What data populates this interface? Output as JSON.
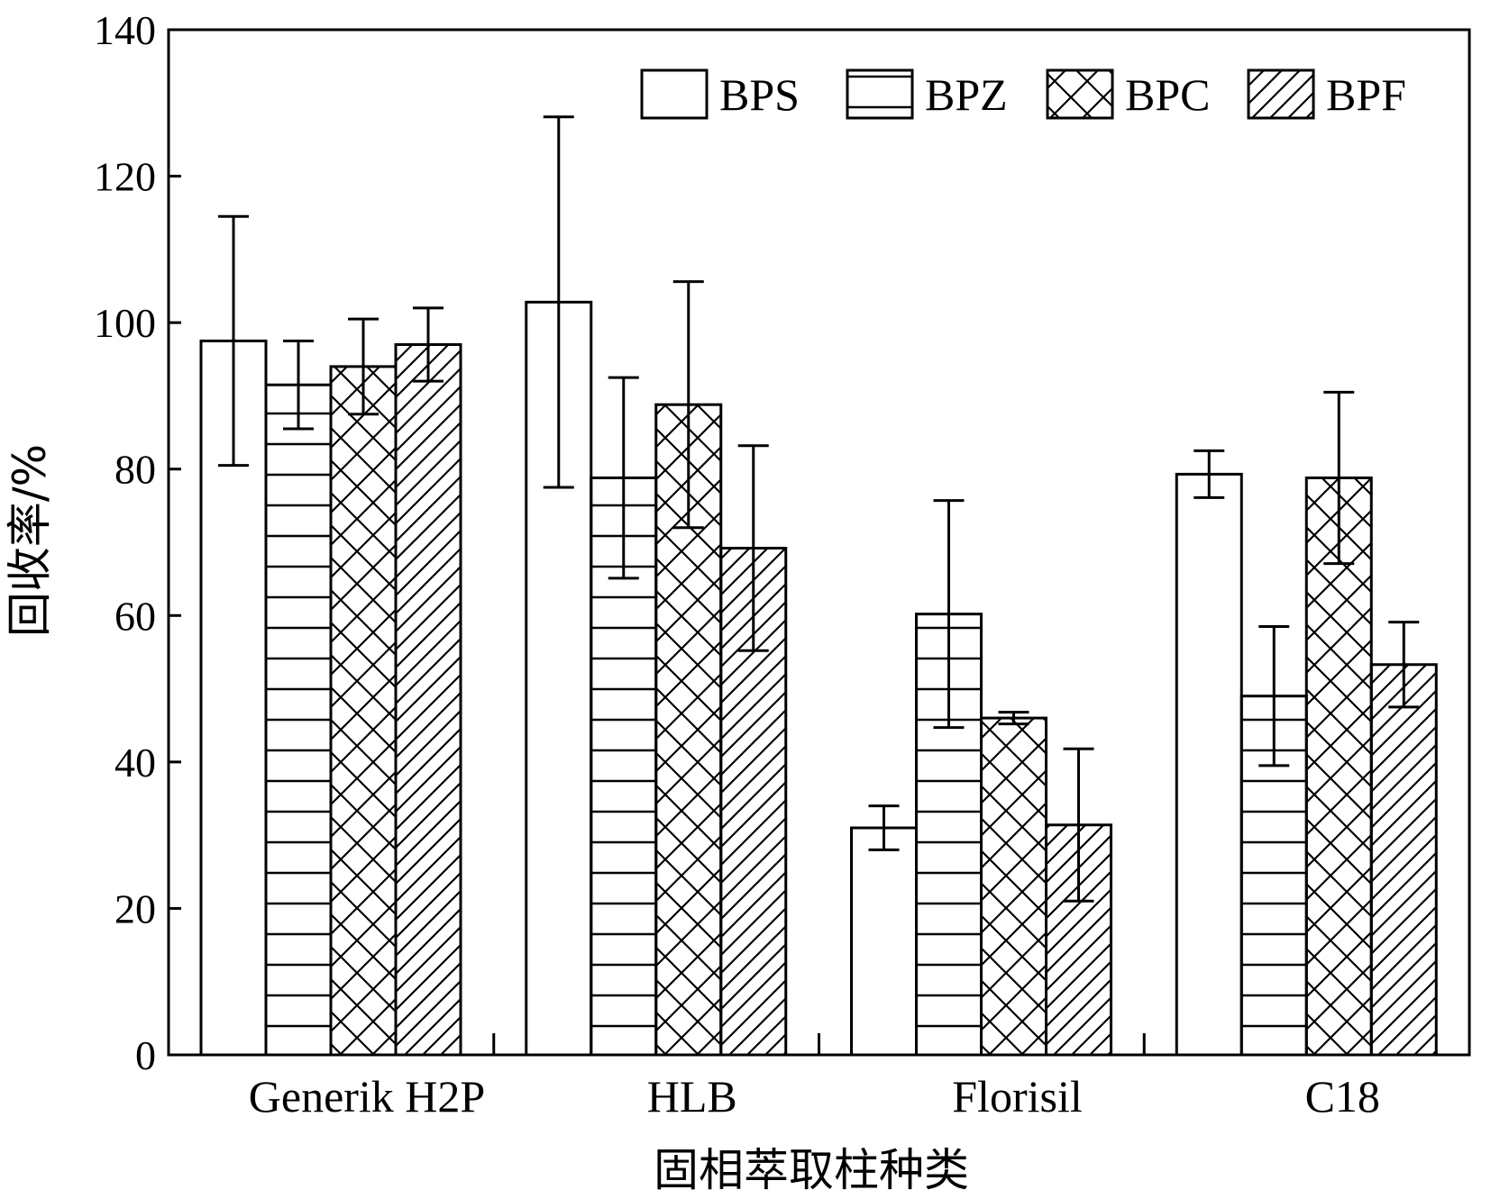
{
  "chart_data": {
    "type": "bar",
    "title": "",
    "xlabel": "固相萃取柱种类",
    "ylabel": "回收率/%",
    "ylim": [
      0,
      140
    ],
    "yticks": [
      0,
      20,
      40,
      60,
      80,
      100,
      120,
      140
    ],
    "grid": false,
    "legend_position": "top-right",
    "categories": [
      "Generik H2P",
      "HLB",
      "Florisil",
      "C18"
    ],
    "series": [
      {
        "name": "BPS",
        "pattern": "none",
        "values": [
          97.5,
          102.8,
          31.0,
          79.3
        ],
        "errors": [
          17.0,
          25.3,
          3.0,
          3.2
        ]
      },
      {
        "name": "BPZ",
        "pattern": "horizontal",
        "values": [
          91.5,
          78.8,
          60.2,
          49.0
        ],
        "errors": [
          6.0,
          13.7,
          15.5,
          9.5
        ]
      },
      {
        "name": "BPC",
        "pattern": "crosshatch",
        "values": [
          94.0,
          88.8,
          46.0,
          78.8
        ],
        "errors": [
          6.5,
          16.8,
          0.8,
          11.7
        ]
      },
      {
        "name": "BPF",
        "pattern": "diagonal",
        "values": [
          97.0,
          69.2,
          31.4,
          53.3
        ],
        "errors": [
          5.0,
          14.0,
          10.4,
          5.8
        ]
      }
    ]
  }
}
